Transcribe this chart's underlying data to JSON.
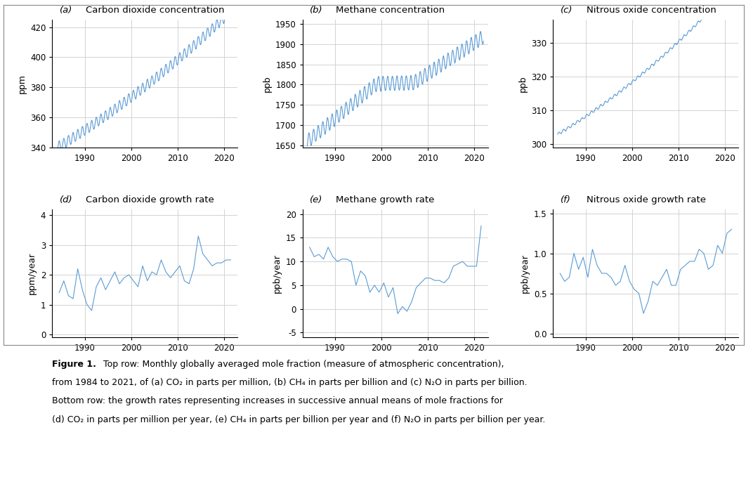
{
  "line_color": "#5B9BD5",
  "bg_color": "#FFFFFF",
  "grid_color": "#CCCCCC",
  "panel_bg": "#FFFFFF",
  "figure_bg": "#FFFFFF",
  "border_color": "#000000",
  "title_color": "#000000",
  "label_color": "#000000",
  "tick_color": "#000000",
  "panels": [
    {
      "label": "(a)",
      "title": "Carbon dioxide concentration",
      "ylabel": "ppm",
      "ylim": [
        340,
        425
      ],
      "yticks": [
        340,
        360,
        380,
        400,
        420
      ],
      "xlim": [
        1983,
        2023
      ],
      "xticks": [
        1990,
        2000,
        2010,
        2020
      ]
    },
    {
      "label": "(b)",
      "title": "Methane concentration",
      "ylabel": "ppb",
      "ylim": [
        1645,
        1960
      ],
      "yticks": [
        1650,
        1700,
        1750,
        1800,
        1850,
        1900,
        1950
      ],
      "xlim": [
        1983,
        2023
      ],
      "xticks": [
        1990,
        2000,
        2010,
        2020
      ]
    },
    {
      "label": "(c)",
      "title": "Nitrous oxide concentration",
      "ylabel": "ppb",
      "ylim": [
        299,
        337
      ],
      "yticks": [
        300,
        310,
        320,
        330
      ],
      "xlim": [
        1983,
        2023
      ],
      "xticks": [
        1990,
        2000,
        2010,
        2020
      ]
    },
    {
      "label": "(d)",
      "title": "Carbon dioxide growth rate",
      "ylabel": "ppm/year",
      "ylim": [
        -0.1,
        4.2
      ],
      "yticks": [
        0,
        1,
        2,
        3,
        4
      ],
      "xlim": [
        1983,
        2023
      ],
      "xticks": [
        1990,
        2000,
        2010,
        2020
      ]
    },
    {
      "label": "(e)",
      "title": "Methane growth rate",
      "ylabel": "ppb/year",
      "ylim": [
        -6,
        21
      ],
      "yticks": [
        -5,
        0,
        5,
        10,
        15,
        20
      ],
      "xlim": [
        1983,
        2023
      ],
      "xticks": [
        1990,
        2000,
        2010,
        2020
      ]
    },
    {
      "label": "(f)",
      "title": "Nitrous oxide growth rate",
      "ylabel": "ppb/year",
      "ylim": [
        -0.05,
        1.55
      ],
      "yticks": [
        0.0,
        0.5,
        1.0,
        1.5
      ],
      "xlim": [
        1983,
        2023
      ],
      "xticks": [
        1990,
        2000,
        2010,
        2020
      ]
    }
  ]
}
